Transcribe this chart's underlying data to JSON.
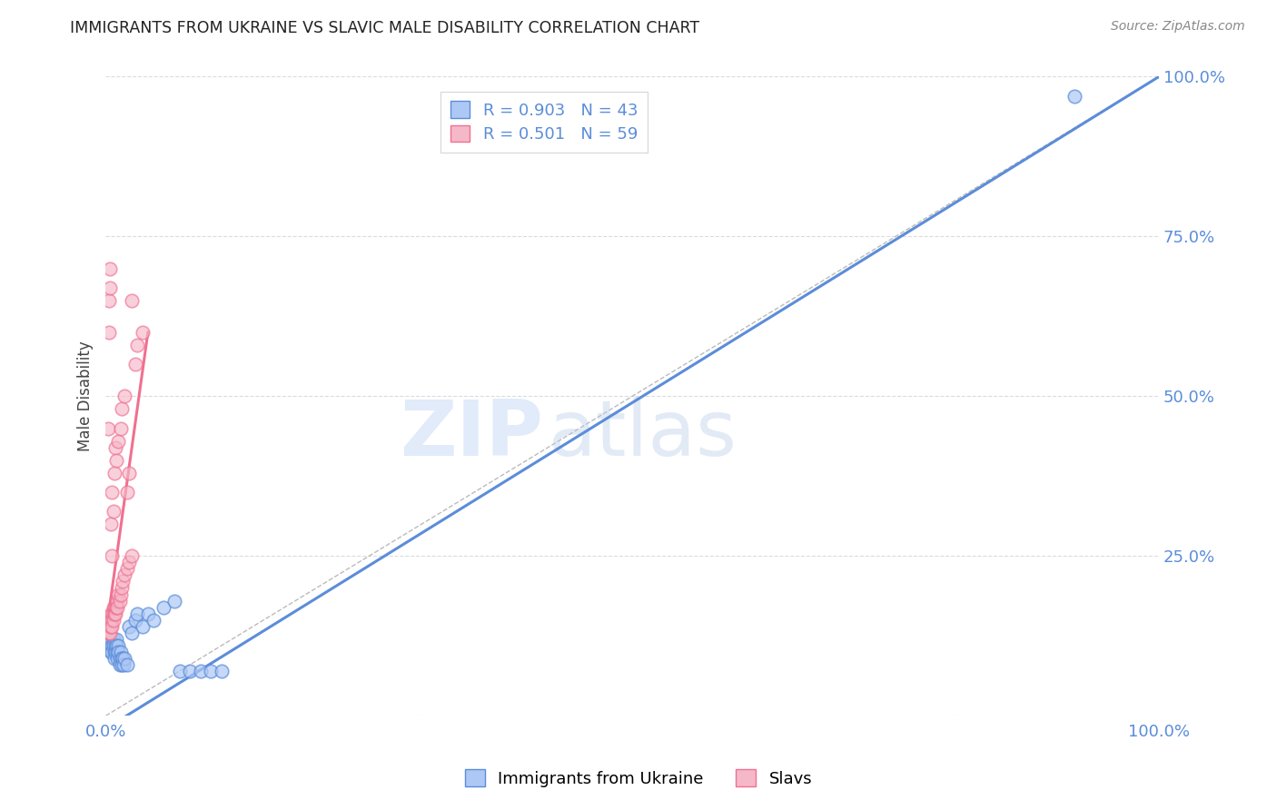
{
  "title": "IMMIGRANTS FROM UKRAINE VS SLAVIC MALE DISABILITY CORRELATION CHART",
  "source": "Source: ZipAtlas.com",
  "ylabel_label": "Male Disability",
  "xlim": [
    0,
    1
  ],
  "ylim": [
    0,
    1
  ],
  "blue_color": "#5b8dd9",
  "pink_color": "#f07090",
  "blue_scatter": [
    [
      0.002,
      0.13
    ],
    [
      0.003,
      0.12
    ],
    [
      0.004,
      0.11
    ],
    [
      0.005,
      0.12
    ],
    [
      0.005,
      0.1
    ],
    [
      0.006,
      0.11
    ],
    [
      0.006,
      0.1
    ],
    [
      0.007,
      0.12
    ],
    [
      0.007,
      0.11
    ],
    [
      0.008,
      0.1
    ],
    [
      0.008,
      0.09
    ],
    [
      0.009,
      0.11
    ],
    [
      0.009,
      0.1
    ],
    [
      0.01,
      0.12
    ],
    [
      0.01,
      0.11
    ],
    [
      0.011,
      0.1
    ],
    [
      0.011,
      0.09
    ],
    [
      0.012,
      0.11
    ],
    [
      0.012,
      0.1
    ],
    [
      0.013,
      0.09
    ],
    [
      0.013,
      0.08
    ],
    [
      0.014,
      0.1
    ],
    [
      0.015,
      0.09
    ],
    [
      0.015,
      0.08
    ],
    [
      0.016,
      0.09
    ],
    [
      0.017,
      0.08
    ],
    [
      0.018,
      0.09
    ],
    [
      0.02,
      0.08
    ],
    [
      0.022,
      0.14
    ],
    [
      0.025,
      0.13
    ],
    [
      0.028,
      0.15
    ],
    [
      0.03,
      0.16
    ],
    [
      0.035,
      0.14
    ],
    [
      0.04,
      0.16
    ],
    [
      0.045,
      0.15
    ],
    [
      0.055,
      0.17
    ],
    [
      0.065,
      0.18
    ],
    [
      0.07,
      0.07
    ],
    [
      0.08,
      0.07
    ],
    [
      0.09,
      0.07
    ],
    [
      0.1,
      0.07
    ],
    [
      0.11,
      0.07
    ],
    [
      0.92,
      0.97
    ]
  ],
  "pink_scatter": [
    [
      0.001,
      0.15
    ],
    [
      0.002,
      0.14
    ],
    [
      0.002,
      0.13
    ],
    [
      0.003,
      0.15
    ],
    [
      0.003,
      0.14
    ],
    [
      0.003,
      0.13
    ],
    [
      0.004,
      0.15
    ],
    [
      0.004,
      0.14
    ],
    [
      0.004,
      0.13
    ],
    [
      0.005,
      0.16
    ],
    [
      0.005,
      0.15
    ],
    [
      0.005,
      0.14
    ],
    [
      0.006,
      0.16
    ],
    [
      0.006,
      0.15
    ],
    [
      0.006,
      0.14
    ],
    [
      0.007,
      0.17
    ],
    [
      0.007,
      0.16
    ],
    [
      0.007,
      0.15
    ],
    [
      0.008,
      0.17
    ],
    [
      0.008,
      0.16
    ],
    [
      0.009,
      0.17
    ],
    [
      0.009,
      0.16
    ],
    [
      0.01,
      0.18
    ],
    [
      0.01,
      0.17
    ],
    [
      0.011,
      0.18
    ],
    [
      0.011,
      0.17
    ],
    [
      0.012,
      0.19
    ],
    [
      0.013,
      0.18
    ],
    [
      0.014,
      0.19
    ],
    [
      0.015,
      0.2
    ],
    [
      0.016,
      0.21
    ],
    [
      0.018,
      0.22
    ],
    [
      0.02,
      0.23
    ],
    [
      0.022,
      0.24
    ],
    [
      0.025,
      0.25
    ],
    [
      0.002,
      0.45
    ],
    [
      0.003,
      0.6
    ],
    [
      0.003,
      0.65
    ],
    [
      0.004,
      0.7
    ],
    [
      0.004,
      0.67
    ],
    [
      0.005,
      0.3
    ],
    [
      0.006,
      0.25
    ],
    [
      0.006,
      0.35
    ],
    [
      0.007,
      0.32
    ],
    [
      0.008,
      0.38
    ],
    [
      0.009,
      0.42
    ],
    [
      0.01,
      0.4
    ],
    [
      0.012,
      0.43
    ],
    [
      0.014,
      0.45
    ],
    [
      0.015,
      0.48
    ],
    [
      0.018,
      0.5
    ],
    [
      0.02,
      0.35
    ],
    [
      0.022,
      0.38
    ],
    [
      0.025,
      0.65
    ],
    [
      0.028,
      0.55
    ],
    [
      0.03,
      0.58
    ],
    [
      0.035,
      0.6
    ]
  ],
  "blue_line": {
    "x0": 0.0,
    "y0": -0.02,
    "x1": 1.0,
    "y1": 1.0
  },
  "pink_line": {
    "x0": 0.001,
    "y0": 0.14,
    "x1": 0.04,
    "y1": 0.6
  },
  "diagonal_line": {
    "x0": 0.0,
    "y0": 0.0,
    "x1": 1.0,
    "y1": 1.0
  },
  "watermark_zip": "ZIP",
  "watermark_atlas": "atlas",
  "background_color": "#ffffff",
  "grid_color": "#cccccc"
}
